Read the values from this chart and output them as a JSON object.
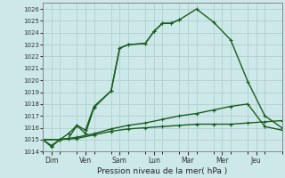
{
  "xlabel": "Pression niveau de la mer( hPa )",
  "ylim": [
    1014,
    1026.5
  ],
  "yticks": [
    1014,
    1015,
    1016,
    1017,
    1018,
    1019,
    1020,
    1021,
    1022,
    1023,
    1024,
    1025,
    1026
  ],
  "day_labels": [
    "Dim",
    "Ven",
    "Sam",
    "Lun",
    "Mar",
    "Mer",
    "Jeu"
  ],
  "day_tick_positions": [
    0.5,
    2.5,
    4.5,
    6.5,
    8.5,
    10.5,
    12.5
  ],
  "vgrid_positions": [
    0,
    1,
    2,
    3,
    4,
    5,
    6,
    7,
    8,
    9,
    10,
    11,
    12,
    13,
    14
  ],
  "xlim": [
    0,
    14
  ],
  "background_color": "#cce8e8",
  "grid_color": "#aacccc",
  "line_color": "#1a5e20",
  "series": [
    {
      "x": [
        0,
        0.5,
        1,
        1.5,
        2,
        2.5,
        3,
        4,
        4.5,
        5,
        6,
        6.5,
        7,
        7.5,
        8,
        9,
        10,
        11,
        12,
        13,
        14
      ],
      "y": [
        1015.0,
        1014.5,
        1015.0,
        1015.1,
        1016.2,
        1015.8,
        1017.8,
        1019.1,
        1022.7,
        1023.0,
        1023.1,
        1024.1,
        1024.8,
        1024.8,
        1025.1,
        1026.0,
        1024.9,
        1023.4,
        1019.9,
        1017.0,
        1016.0
      ]
    },
    {
      "x": [
        0,
        0.5,
        1,
        1.5,
        2,
        2.5,
        3,
        4,
        4.5,
        5,
        6,
        6.5,
        7,
        7.5,
        8
      ],
      "y": [
        1015.0,
        1014.4,
        1015.0,
        1015.5,
        1016.2,
        1015.5,
        1017.7,
        1019.1,
        1022.7,
        1023.0,
        1023.1,
        1024.1,
        1024.8,
        1024.8,
        1025.1
      ]
    },
    {
      "x": [
        0,
        1,
        2,
        3,
        4,
        5,
        6,
        7,
        8,
        9,
        10,
        11,
        12,
        13,
        14
      ],
      "y": [
        1015.0,
        1015.0,
        1015.1,
        1015.4,
        1015.7,
        1015.9,
        1016.0,
        1016.1,
        1016.2,
        1016.3,
        1016.3,
        1016.3,
        1016.4,
        1016.5,
        1016.6
      ]
    },
    {
      "x": [
        0,
        1,
        2,
        3,
        4,
        5,
        6,
        7,
        8,
        9,
        10,
        11,
        12,
        13,
        14
      ],
      "y": [
        1015.0,
        1015.0,
        1015.2,
        1015.5,
        1015.9,
        1016.2,
        1016.4,
        1016.7,
        1017.0,
        1017.2,
        1017.5,
        1017.8,
        1018.0,
        1016.1,
        1015.8
      ]
    }
  ],
  "marker": "+",
  "markersize": 3,
  "linewidth": 1.0
}
